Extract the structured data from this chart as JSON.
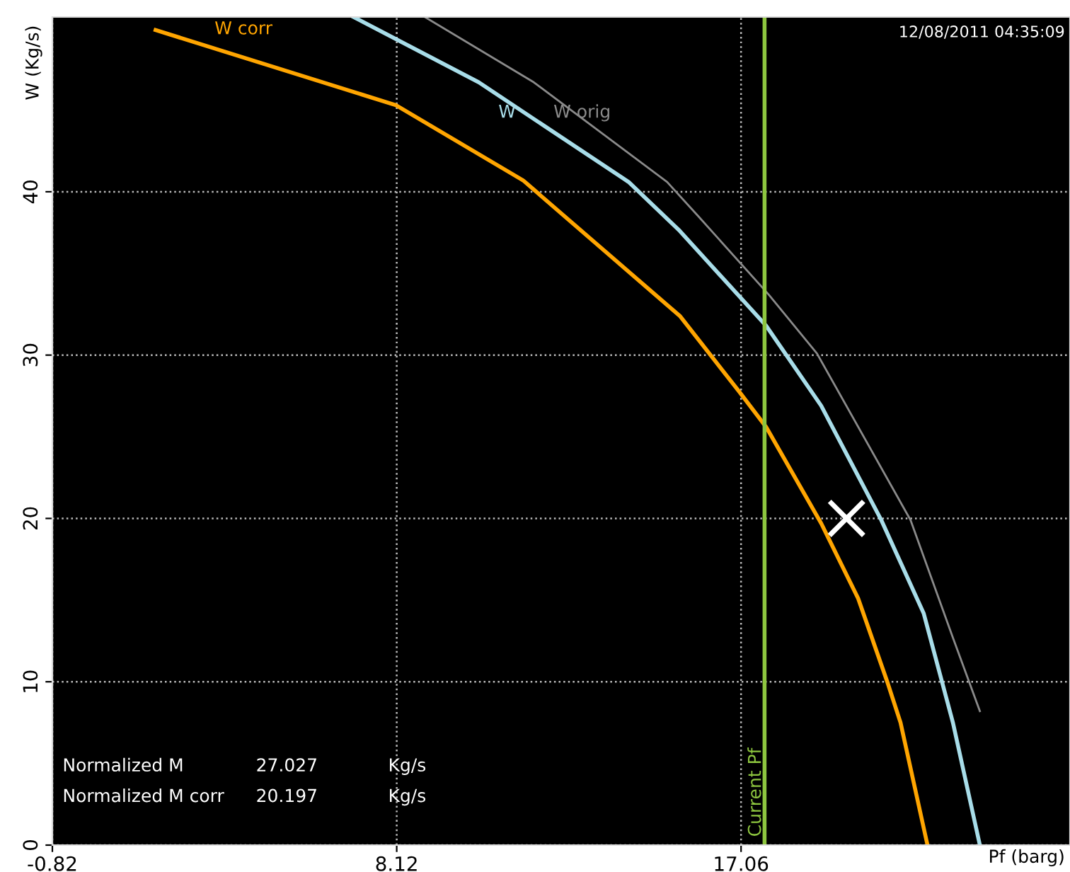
{
  "chart_data": {
    "type": "line",
    "title": "12/08/2011 04:35:09",
    "xlabel": "Pf (barg)",
    "ylabel": "W (Kg/s)",
    "xlim": [
      -0.82,
      25.6
    ],
    "xticks": [
      -0.82,
      8.12,
      17.06
    ],
    "ylim": [
      0,
      50.7
    ],
    "yticks": [
      0,
      10,
      20,
      30,
      40
    ],
    "grid": true,
    "legend": false,
    "marker": "none",
    "line_style": "solid",
    "series": [
      {
        "name": "W corr",
        "color": "#ffa500",
        "x": [
          1.86,
          8.1,
          11.4,
          15.47,
          17.0,
          17.71,
          19.14,
          20.1,
          20.87,
          21.2,
          21.9
        ],
        "values": [
          49.9,
          45.3,
          40.7,
          32.4,
          27.8,
          25.6,
          19.7,
          15.1,
          9.9,
          7.5,
          0
        ]
      },
      {
        "name": "W",
        "color": "#a8dde9",
        "x": [
          7.0,
          10.25,
          14.14,
          15.47,
          17.71,
          19.14,
          20.7,
          21.8,
          22.56,
          23.26
        ],
        "values": [
          50.7,
          46.7,
          40.6,
          37.6,
          31.8,
          26.9,
          19.9,
          14.2,
          7.5,
          0
        ]
      },
      {
        "name": "W orig",
        "color": "#8a8a8a",
        "x": [
          8.85,
          11.68,
          15.14,
          15.95,
          17.78,
          19.03,
          21.46,
          22.56,
          23.26
        ],
        "values": [
          50.7,
          46.7,
          40.6,
          38.5,
          33.7,
          30.1,
          19.9,
          12.7,
          8.2
        ]
      },
      {
        "type": "scatter",
        "marker": "cross",
        "color": "#ffffff",
        "x": [
          19.8
        ],
        "values": [
          20.0
        ]
      }
    ],
    "ref_lines": [
      {
        "axis": "x",
        "value": 17.67,
        "label": "Current Pf",
        "color": "#8dc63f",
        "line_style": "solid"
      }
    ],
    "annotations": [
      "Normalized M",
      "27.027",
      "Kg/s",
      "Normalized M corr",
      "20.197",
      "Kg/s"
    ]
  }
}
